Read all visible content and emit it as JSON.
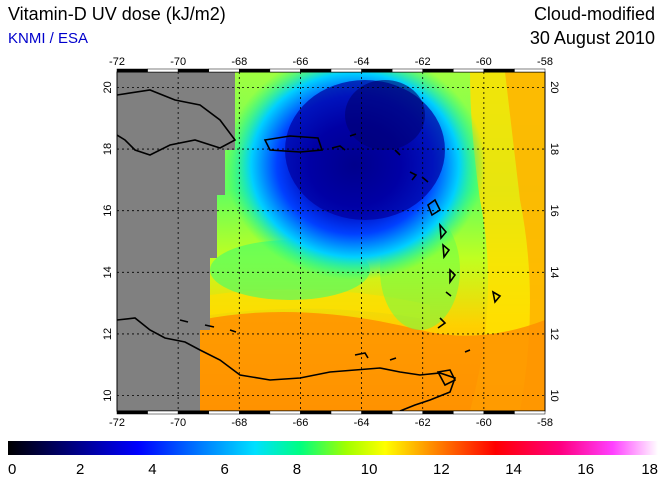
{
  "header": {
    "title": "Vitamin-D UV dose (kJ/m2)",
    "subtitle": "KNMI / ESA",
    "product": "Cloud-modified",
    "date": "30 August 2010"
  },
  "colors": {
    "subtitle": "#0000cc",
    "land_nodata": "#808080",
    "coastline": "#000000",
    "grid": "#000000"
  },
  "map": {
    "lon_range": [
      -72,
      -58
    ],
    "lat_range": [
      9.5,
      20.5
    ],
    "lon_ticks": [
      "-72",
      "-70",
      "-68",
      "-66",
      "-64",
      "-62",
      "-60",
      "-58"
    ],
    "lat_ticks": [
      "10",
      "12",
      "14",
      "16",
      "18",
      "20"
    ],
    "gridlines": "dotted"
  },
  "colorbar": {
    "ticks": [
      "0",
      "2",
      "4",
      "6",
      "8",
      "10",
      "12",
      "14",
      "16",
      "18"
    ],
    "range": [
      0,
      18
    ]
  }
}
